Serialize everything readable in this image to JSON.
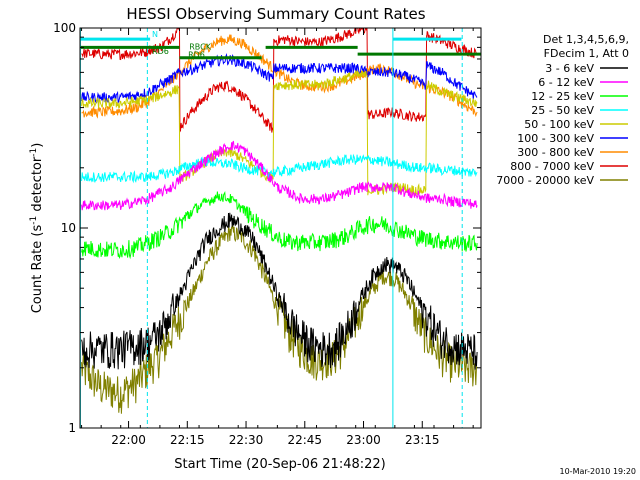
{
  "chart_data": {
    "type": "line",
    "title": "HESSI Observing Summary Count Rates",
    "xlabel": "Start Time (20-Sep-06 21:48:22)",
    "ylabel": "Count Rate (s",
    "ylabel_sup": "-1",
    "ylabel_tail": " detector",
    "ylabel_sup2": "-1",
    "ylabel_close": ")",
    "x_tick_labels": [
      "22:00",
      "22:15",
      "22:30",
      "22:45",
      "23:00",
      "23:15"
    ],
    "x_ticks_min": [
      12,
      27,
      42,
      57,
      72,
      87
    ],
    "xlim": [
      -0.4,
      102
    ],
    "y_scale": "log",
    "ylim": [
      1,
      100
    ],
    "y_tick_labels": [
      "1",
      "10",
      "100"
    ],
    "y_tick_values": [
      1,
      10,
      100
    ],
    "grid": false,
    "legend_position": "right",
    "legend_header": [
      "Det 1,3,4,5,6,9,",
      "FDecim 1, Att 0"
    ],
    "footer": "10-Mar-2010 19:20",
    "annotations": [
      {
        "text": "N",
        "x": 18.0,
        "y": 90
      },
      {
        "text": "RD6",
        "x": 18.0,
        "y": 74
      },
      {
        "text": "RBCK",
        "x": 27.5,
        "y": 78
      },
      {
        "text": "RD6",
        "x": 27.2,
        "y": 71
      }
    ],
    "vlines": [
      {
        "x": -0.3,
        "style": "solid",
        "color": "#00e5ee"
      },
      {
        "x": 16.8,
        "style": "dashed",
        "color": "#00e5ee"
      },
      {
        "x": 79.5,
        "style": "solid",
        "color": "#00e5ee"
      },
      {
        "x": 97.2,
        "style": "dashed",
        "color": "#00e5ee"
      }
    ],
    "hsegments": [
      {
        "x": [
          -0.3,
          17.5
        ],
        "y": 88,
        "color": "#00e5ee"
      },
      {
        "x": [
          79.5,
          97.0
        ],
        "y": 88,
        "color": "#00e5ee"
      },
      {
        "x": [
          -0.3,
          25.0
        ],
        "y": 80,
        "color": "#007700"
      },
      {
        "x": [
          25.0,
          46.0
        ],
        "y": 71,
        "color": "#007700"
      },
      {
        "x": [
          47.0,
          70.5
        ],
        "y": 80,
        "color": "#007700"
      },
      {
        "x": [
          70.5,
          102.0
        ],
        "y": 74,
        "color": "#007700"
      }
    ],
    "series": [
      {
        "name": "3 - 6 keV",
        "color": "#000000",
        "x": [
          0,
          5,
          10,
          14,
          17,
          20,
          23,
          26,
          29,
          32,
          35,
          38,
          41,
          44,
          47,
          50,
          53,
          56,
          59,
          62,
          65,
          68,
          71,
          74,
          77,
          80,
          83,
          86,
          89,
          92,
          95,
          98,
          101
        ],
        "y": [
          2.5,
          2.5,
          2.5,
          2.6,
          2.7,
          3.0,
          3.8,
          5.0,
          6.8,
          8.8,
          10.0,
          11.0,
          10.2,
          8.6,
          6.5,
          4.6,
          3.5,
          2.9,
          2.6,
          2.5,
          2.6,
          3.2,
          4.3,
          5.6,
          6.6,
          6.5,
          5.6,
          4.3,
          3.4,
          2.8,
          2.6,
          2.5,
          2.4
        ]
      },
      {
        "name": "6 - 12 keV",
        "color": "#ff00ff",
        "x": [
          0,
          5,
          10,
          14,
          17,
          20,
          23,
          26,
          29,
          32,
          35,
          38,
          41,
          44,
          47,
          50,
          53,
          56,
          59,
          62,
          65,
          68,
          71,
          74,
          77,
          80,
          83,
          86,
          89,
          92,
          95,
          98,
          101
        ],
        "y": [
          13,
          13,
          13,
          13.5,
          14,
          15,
          16,
          18,
          20,
          22,
          24,
          26,
          25,
          22,
          19,
          16,
          15,
          14,
          14,
          14,
          14.5,
          15,
          16,
          16,
          16,
          16,
          15,
          14.5,
          14,
          14,
          13.5,
          13.5,
          13
        ]
      },
      {
        "name": "12 - 25 keV",
        "color": "#00ff00",
        "x": [
          0,
          5,
          10,
          14,
          17,
          20,
          23,
          26,
          29,
          32,
          35,
          38,
          41,
          44,
          47,
          50,
          53,
          56,
          59,
          62,
          65,
          68,
          71,
          74,
          77,
          80,
          83,
          86,
          89,
          92,
          95,
          98,
          101
        ],
        "y": [
          8.0,
          7.8,
          7.8,
          8.0,
          8.5,
          9.0,
          9.8,
          11.0,
          12.5,
          13.5,
          14.5,
          14.0,
          12.5,
          11.0,
          10.0,
          9.0,
          8.5,
          8.5,
          8.5,
          8.5,
          8.8,
          9.2,
          10.0,
          10.5,
          10.5,
          10.0,
          9.5,
          9.0,
          8.8,
          8.6,
          8.5,
          8.4,
          8.4
        ]
      },
      {
        "name": "25 - 50 keV",
        "color": "#00ffff",
        "x": [
          0,
          5,
          10,
          14,
          17,
          20,
          23,
          26,
          29,
          32,
          35,
          38,
          41,
          44,
          47,
          50,
          53,
          56,
          59,
          62,
          65,
          68,
          71,
          74,
          77,
          80,
          83,
          86,
          89,
          92,
          95,
          98,
          101
        ],
        "y": [
          18,
          18,
          18,
          18,
          18,
          18.5,
          19,
          20,
          21,
          21.5,
          21,
          21,
          20,
          19.5,
          19,
          19,
          19.5,
          20,
          20.5,
          21,
          21.5,
          22,
          22,
          22,
          21.5,
          21,
          20.5,
          20,
          20,
          19.5,
          19.5,
          19,
          19
        ]
      },
      {
        "name": "50 - 100 keV",
        "color": "#cccc00",
        "x": [
          0,
          5,
          10,
          14,
          17,
          20,
          23,
          24.9,
          25.1,
          28,
          31,
          34,
          37,
          40,
          43,
          46,
          48.9,
          49.1,
          52,
          55,
          58,
          61,
          64,
          67,
          70,
          72.9,
          73.1,
          76,
          79,
          82,
          85,
          87.9,
          88.1,
          92,
          96,
          101
        ],
        "y": [
          42,
          42,
          42,
          43,
          44,
          46,
          48,
          50,
          17.5,
          19,
          21,
          23,
          24,
          23,
          21,
          19,
          17.5,
          52,
          52,
          52,
          52,
          52,
          54,
          56,
          58,
          58,
          15.5,
          15.5,
          16,
          16,
          15.5,
          15.5,
          52,
          48,
          45,
          42
        ]
      },
      {
        "name": "100 - 300 keV",
        "color": "#0000ff",
        "x": [
          0,
          5,
          10,
          14,
          17,
          20,
          23,
          25,
          28,
          31,
          34,
          37,
          40,
          43,
          46,
          48.9,
          49.1,
          52,
          55,
          58,
          61,
          64,
          67,
          70,
          73,
          76,
          79,
          82,
          85,
          87.9,
          88.1,
          92,
          96,
          101
        ],
        "y": [
          45,
          45,
          45,
          46,
          48,
          52,
          56,
          60,
          62,
          65,
          68,
          70,
          68,
          65,
          60,
          56,
          63,
          63,
          63,
          63,
          63,
          63,
          63,
          63,
          60,
          60,
          60,
          58,
          55,
          52,
          65,
          60,
          52,
          45
        ]
      },
      {
        "name": "300 - 800 keV",
        "color": "#ff8c00",
        "x": [
          0,
          5,
          10,
          14,
          17,
          20,
          23,
          26,
          29,
          32,
          35,
          38,
          41,
          44,
          47,
          50,
          53,
          56,
          59,
          62,
          65,
          68,
          71,
          74,
          77,
          80,
          83,
          86,
          89,
          92,
          95,
          98,
          101
        ],
        "y": [
          38,
          38,
          38.5,
          40,
          43,
          48,
          55,
          63,
          72,
          80,
          86,
          88,
          84,
          76,
          68,
          60,
          55,
          52,
          51,
          51,
          52,
          55,
          58,
          62,
          63,
          60,
          56,
          52,
          50,
          48,
          45,
          41,
          38
        ]
      },
      {
        "name": "800 - 7000 keV",
        "color": "#dd0000",
        "x": [
          0,
          5,
          10,
          14,
          16.9,
          17.1,
          20,
          23,
          25,
          25.1,
          28,
          31,
          34,
          37,
          40,
          43,
          46,
          48.9,
          49.1,
          52,
          55,
          58,
          61,
          64,
          67,
          70,
          72.9,
          73.1,
          76,
          79,
          82,
          85,
          87.9,
          88.1,
          92,
          96,
          101
        ],
        "y": [
          75,
          74,
          74,
          75,
          76,
          78,
          80,
          90,
          100,
          32,
          38,
          44,
          50,
          52,
          48,
          42,
          36,
          31,
          86,
          88,
          86,
          85,
          85,
          88,
          92,
          96,
          100,
          37,
          37,
          38,
          37,
          36,
          36,
          92,
          86,
          80,
          74
        ]
      },
      {
        "name": "7000 - 20000 keV",
        "color": "#808000",
        "x": [
          0,
          5,
          10,
          14,
          17,
          20,
          23,
          26,
          29,
          32,
          35,
          38,
          41,
          44,
          47,
          50,
          53,
          56,
          59,
          62,
          65,
          68,
          71,
          74,
          77,
          80,
          83,
          86,
          89,
          92,
          95,
          98,
          101
        ],
        "y": [
          2.0,
          1.6,
          1.5,
          1.7,
          2.0,
          2.3,
          3.0,
          3.8,
          5.0,
          6.8,
          8.3,
          9.6,
          9.0,
          7.6,
          5.6,
          4.0,
          3.0,
          2.5,
          2.2,
          2.2,
          2.3,
          2.8,
          3.8,
          4.8,
          5.8,
          5.6,
          4.6,
          3.4,
          2.7,
          2.3,
          2.1,
          2.0,
          2.0
        ]
      }
    ]
  }
}
